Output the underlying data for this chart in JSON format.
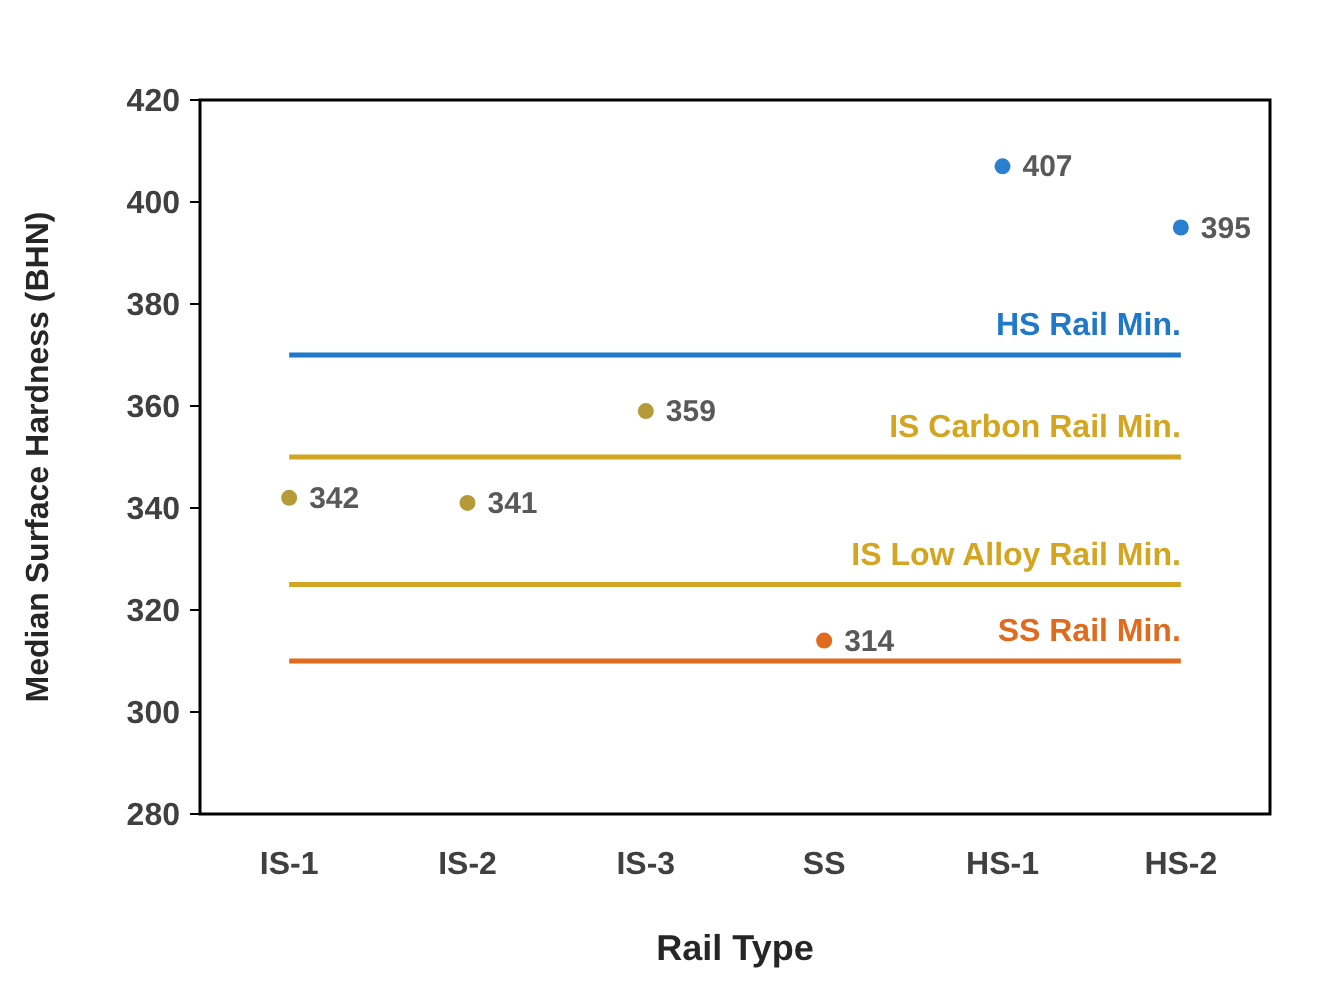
{
  "chart_data": {
    "type": "scatter",
    "xlabel": "Rail Type",
    "ylabel": "Median Surface Hardness (BHN)",
    "categories": [
      "IS-1",
      "IS-2",
      "IS-3",
      "SS",
      "HS-1",
      "HS-2"
    ],
    "values": [
      342,
      341,
      359,
      314,
      407,
      395
    ],
    "colors": [
      "#b59a3a",
      "#b59a3a",
      "#b59a3a",
      "#e06a1e",
      "#2a7fd0",
      "#2a7fd0"
    ],
    "data_labels": true,
    "marker": "circle",
    "grid": false,
    "ylim": [
      280,
      420
    ],
    "yticks": [
      280,
      300,
      320,
      340,
      360,
      380,
      400,
      420
    ],
    "ref_lines": [
      {
        "axis": "y",
        "value": 370,
        "label": "HS Rail Min.",
        "color": "#1f78c8"
      },
      {
        "axis": "y",
        "value": 350,
        "label": "IS Carbon Rail Min.",
        "color": "#d4a520"
      },
      {
        "axis": "y",
        "value": 325,
        "label": "IS Low Alloy Rail Min.",
        "color": "#d4a520"
      },
      {
        "axis": "y",
        "value": 310,
        "label": "SS Rail Min.",
        "color": "#e06a1e"
      }
    ]
  }
}
